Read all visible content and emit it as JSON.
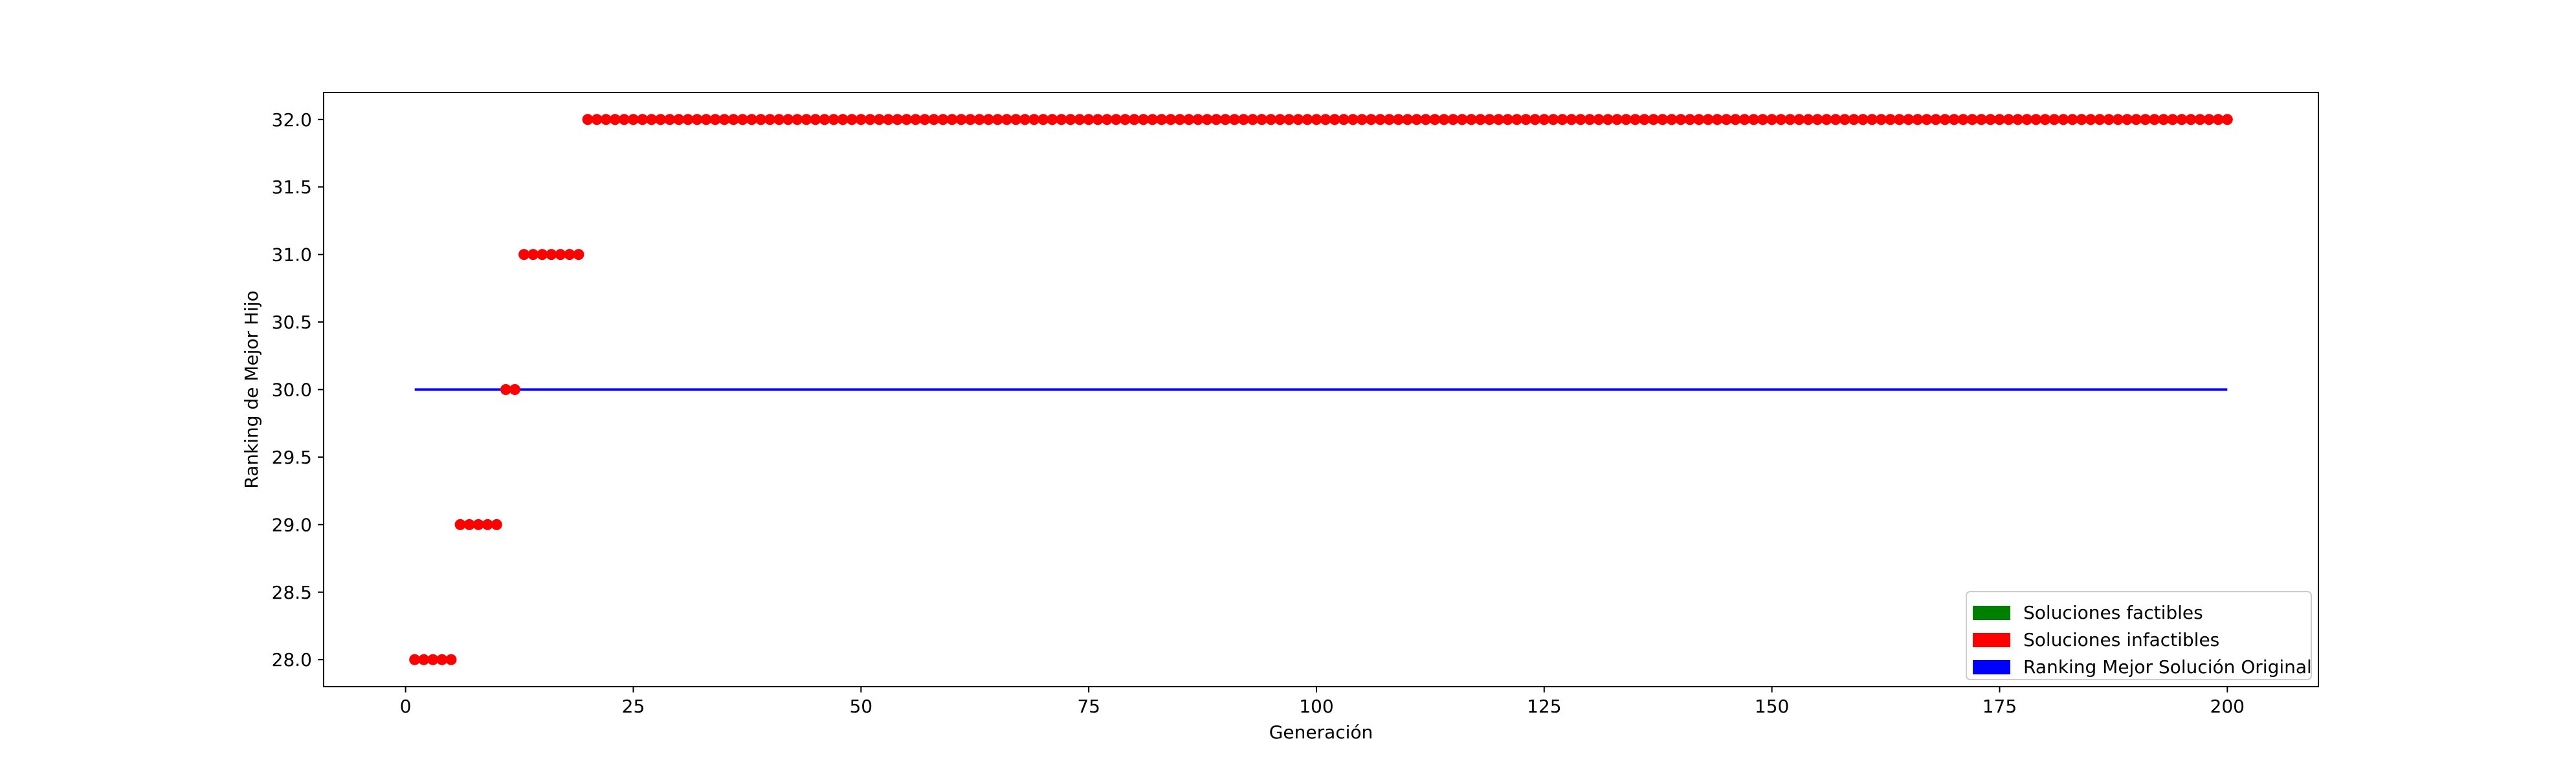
{
  "chart_data": {
    "type": "scatter",
    "title": "",
    "xlabel": "Generación",
    "ylabel": "Ranking de Mejor Hijo",
    "xlim": [
      -9,
      210
    ],
    "ylim": [
      27.8,
      32.2
    ],
    "xticks": [
      0,
      25,
      50,
      75,
      100,
      125,
      150,
      175,
      200
    ],
    "yticks": [
      28.0,
      28.5,
      29.0,
      29.5,
      30.0,
      30.5,
      31.0,
      31.5,
      32.0
    ],
    "grid": false,
    "legend_position": "lower-right",
    "series": [
      {
        "name": "Soluciones factibles",
        "kind": "points",
        "color": "#008000",
        "points": []
      },
      {
        "name": "Soluciones infactibles",
        "kind": "points",
        "color": "#ff0000",
        "segments": [
          {
            "x_from": 1,
            "x_to": 5,
            "y": 28.0
          },
          {
            "x_from": 6,
            "x_to": 10,
            "y": 29.0
          },
          {
            "x_from": 11,
            "x_to": 12,
            "y": 30.0
          },
          {
            "x_from": 13,
            "x_to": 19,
            "y": 31.0
          },
          {
            "x_from": 20,
            "x_to": 200,
            "y": 32.0
          }
        ]
      },
      {
        "name": "Ranking Mejor Solución Original",
        "kind": "line",
        "color": "#0000ff",
        "x": [
          1,
          200
        ],
        "y": [
          30.0,
          30.0
        ]
      }
    ]
  }
}
